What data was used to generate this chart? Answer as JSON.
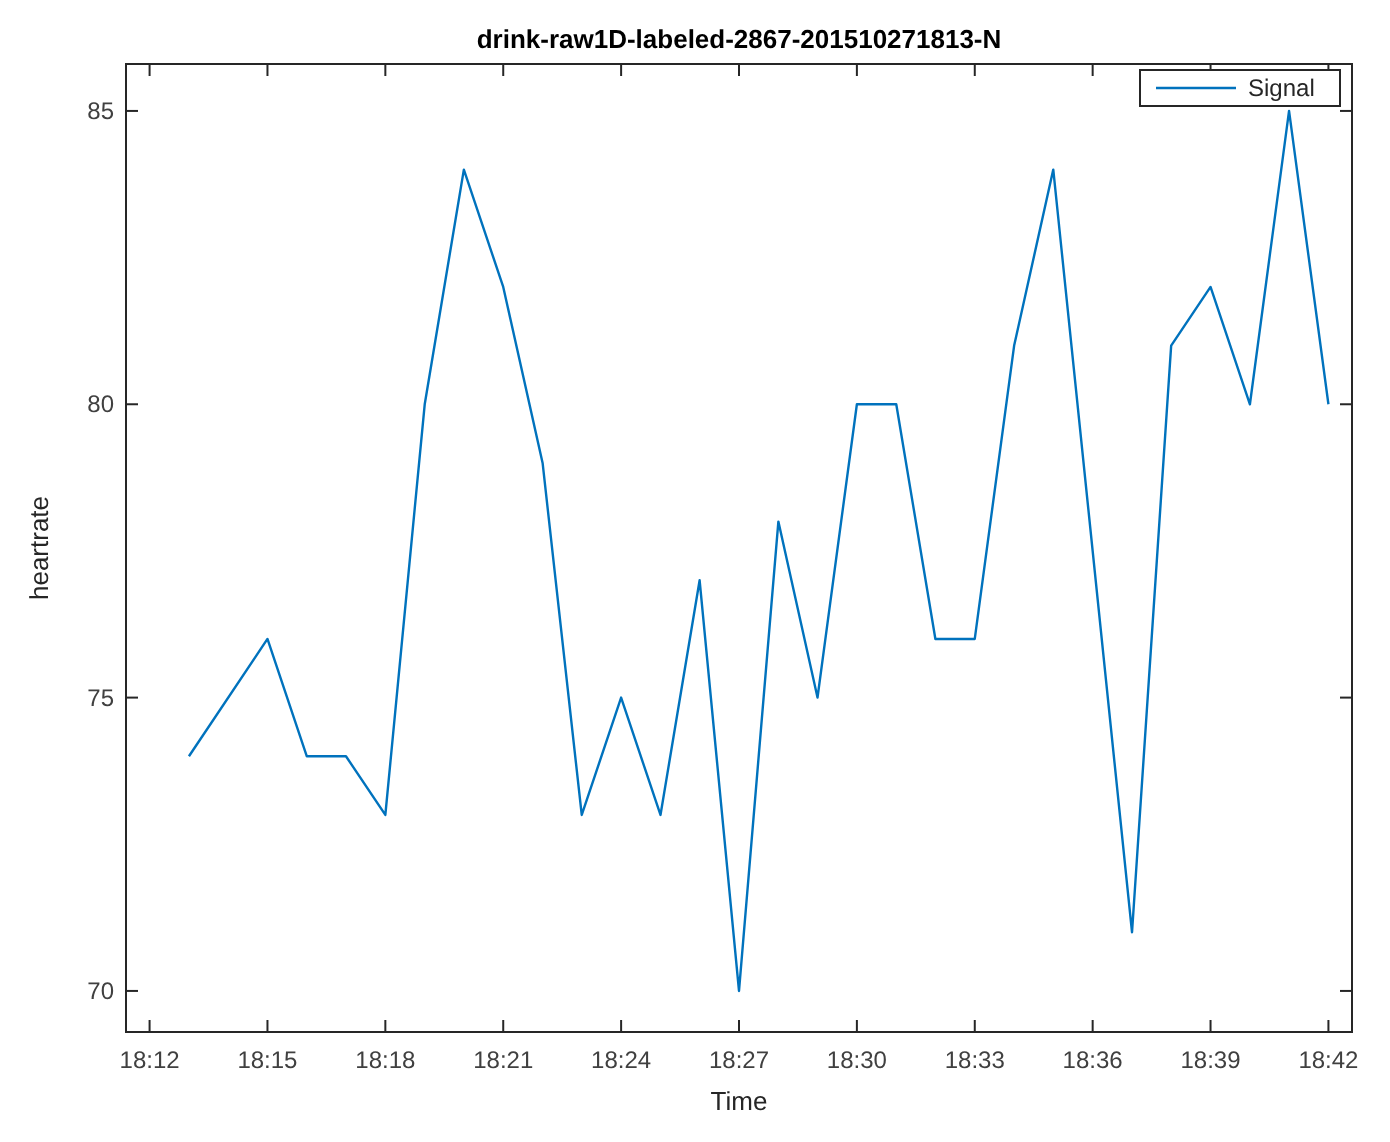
{
  "chart_data": {
    "type": "line",
    "title": "drink-raw1D-labeled-2867-201510271813-N",
    "xlabel": "Time",
    "ylabel": "heartrate",
    "x": [
      18.2167,
      18.25,
      18.2667,
      18.2833,
      18.3,
      18.3167,
      18.3333,
      18.35,
      18.3667,
      18.3833,
      18.4,
      18.4167,
      18.4333,
      18.45,
      18.4667,
      18.4833,
      18.5,
      18.5167,
      18.5333,
      18.55,
      18.5667,
      18.5833,
      18.6167,
      18.6333,
      18.65,
      18.6667,
      18.6833,
      18.7
    ],
    "series": [
      {
        "name": "Signal",
        "color": "#0072bd",
        "values": [
          74,
          76,
          74,
          74,
          73,
          80,
          84,
          82,
          79,
          73,
          75,
          73,
          77,
          70,
          78,
          75,
          80,
          80,
          76,
          76,
          81,
          84,
          71,
          81,
          82,
          80,
          85,
          80
        ]
      }
    ],
    "xlim": [
      18.19,
      18.71
    ],
    "ylim": [
      69.3,
      85.8
    ],
    "xticks": [
      {
        "value": 18.2,
        "label": "18:12"
      },
      {
        "value": 18.25,
        "label": "18:15"
      },
      {
        "value": 18.3,
        "label": "18:18"
      },
      {
        "value": 18.35,
        "label": "18:21"
      },
      {
        "value": 18.4,
        "label": "18:24"
      },
      {
        "value": 18.45,
        "label": "18:27"
      },
      {
        "value": 18.5,
        "label": "18:30"
      },
      {
        "value": 18.55,
        "label": "18:33"
      },
      {
        "value": 18.6,
        "label": "18:36"
      },
      {
        "value": 18.65,
        "label": "18:39"
      },
      {
        "value": 18.7,
        "label": "18:42"
      }
    ],
    "yticks": [
      70,
      75,
      80,
      85
    ],
    "grid": false,
    "legend": "top right",
    "marker": "none",
    "line_style": "solid"
  }
}
